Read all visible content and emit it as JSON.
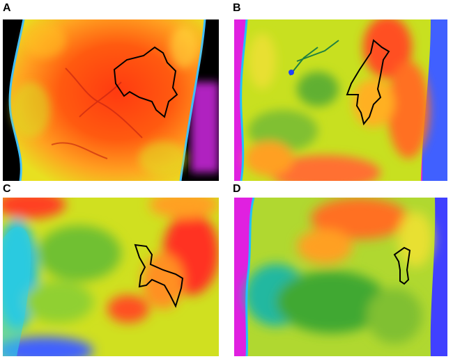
{
  "figure": {
    "panels": [
      {
        "label": "A",
        "tone": "hot",
        "lesion": "large-irregular"
      },
      {
        "label": "B",
        "tone": "mixed",
        "lesion": "medium-irregular"
      },
      {
        "label": "C",
        "tone": "warm",
        "lesion": "medium-irregular"
      },
      {
        "label": "D",
        "tone": "cool",
        "lesion": "small"
      }
    ]
  }
}
